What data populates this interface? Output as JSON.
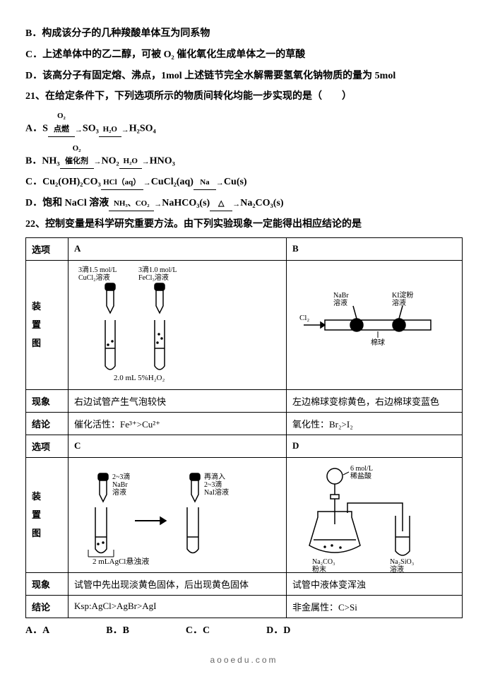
{
  "statements": {
    "B": "B．构成该分子的几种羧酸单体互为同系物",
    "C": "C．上述单体中的乙二醇，可被 O₂ 催化氧化生成单体之一的草酸",
    "D": "D．该高分子有固定熔、沸点，1mol 上述链节完全水解需要氢氧化钠物质的量为 5mol"
  },
  "q21": {
    "stem": "21、在给定条件下，下列选项所示的物质间转化均能一步实现的是（　　）",
    "A": {
      "lead": "A．S",
      "s1top": "O₂",
      "s1bot": "点燃",
      "m1": "SO₃",
      "s2top": "H₂O",
      "m2": "H₂SO₄"
    },
    "B": {
      "lead": "B．NH₃",
      "s1top": "O₂",
      "s1bot": "催化剂",
      "m1": "NO₂",
      "s2top": "H₂O",
      "m2": "HNO₃"
    },
    "C": {
      "lead": "C．Cu₂(OH)₂CO₃",
      "s1top": "HCl（aq）",
      "m1": "CuCl₂(aq)",
      "s2top": "Na",
      "m2": "Cu(s)"
    },
    "D": {
      "lead": "D．饱和 NaCl 溶液",
      "s1top": "NH₃、CO₂",
      "m1": "NaHCO₃(s)",
      "s2top": "△",
      "m2": "Na₂CO₃(s)"
    }
  },
  "q22": {
    "stem": "22、控制变量是科学研究重要方法。由下列实验现象一定能得出相应结论的是",
    "head_opt": "选项",
    "head_dev": "装\n置\n图",
    "head_phen": "现象",
    "head_con": "结论",
    "A": {
      "label": "A",
      "dev_t1": "3滴1.5 mol/L\nCuCl₂溶液",
      "dev_t2": "3滴1.0 mol/L\nFeCl₃溶液",
      "dev_b": "2.0 mL 5%H₂O₂",
      "phen": "右边试管产生气泡较快",
      "con": "催化活性：Fe³⁺>Cu²⁺"
    },
    "B": {
      "label": "B",
      "t1": "NaBr\n溶液",
      "t2": "KI淀粉\n溶液",
      "cl": "Cl₂",
      "cot": "棉球",
      "phen": "左边棉球变棕黄色，右边棉球变蓝色",
      "con": "氧化性：Br₂>I₂"
    },
    "C": {
      "label": "C",
      "t1": "2~3滴\nNaBr\n溶液",
      "t2": "再滴入\n2~3滴\nNaI溶液",
      "b": "2 mLAgCl悬浊液",
      "phen": "试管中先出现淡黄色固体，后出现黄色固体",
      "con": "Ksp:AgCl>AgBr>AgI"
    },
    "D": {
      "label": "D",
      "acid": "6 mol/L\n稀盐酸",
      "s1": "Na₂CO₃\n粉末",
      "s2": "Na₂SiO₃\n溶液",
      "phen": "试管中液体变浑浊",
      "con": "非金属性：C>Si"
    },
    "opts": {
      "A": "A．A",
      "B": "B．B",
      "C": "C．C",
      "D": "D．D"
    }
  },
  "footer": "aooedu.com"
}
